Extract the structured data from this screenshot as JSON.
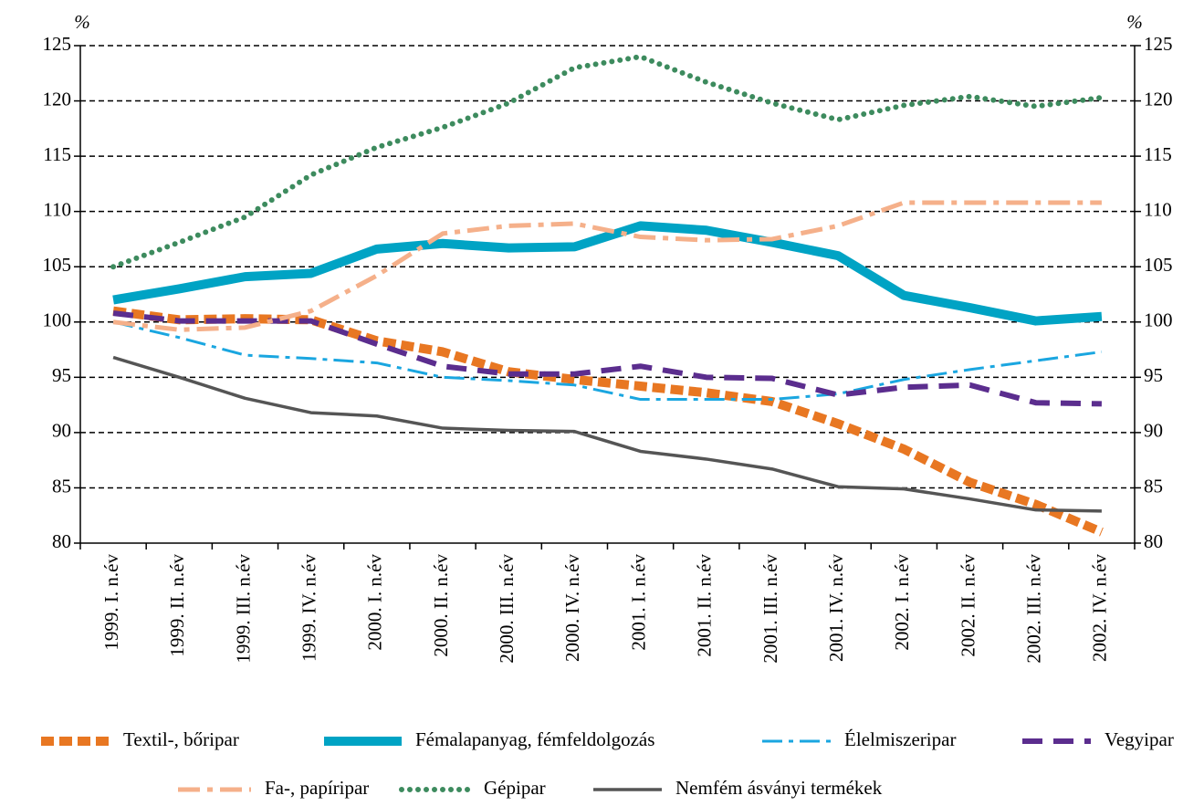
{
  "chart_data": {
    "type": "line",
    "y_label": "%",
    "y2_label": "%",
    "categories": [
      "1999. I. n.év",
      "1999. II. n.év",
      "1999. III. n.év",
      "1999. IV. n.év",
      "2000. I. n.év",
      "2000. II. n.év",
      "2000. III. n.év",
      "2000. IV. n.év",
      "2001. I. n.év",
      "2001. II. n.év",
      "2001. III. n.év",
      "2001. IV. n.év",
      "2002. I. n.év",
      "2002. II. n.év",
      "2002. III. n.év",
      "2002. IV. n.év"
    ],
    "series": [
      {
        "name": "Textil-, bőripar",
        "color": "#e87722",
        "values": [
          101,
          100.2,
          100.3,
          100.2,
          98.3,
          97.3,
          95.5,
          94.8,
          94.2,
          93.6,
          92.8,
          90.8,
          88.5,
          85.5,
          83.5,
          81
        ]
      },
      {
        "name": "Fémalapanyag, fémfeldolgozás",
        "color": "#00a3c4",
        "values": [
          102,
          103,
          104.1,
          104.4,
          106.6,
          107.1,
          106.7,
          106.8,
          108.7,
          108.3,
          107.2,
          106,
          102.4,
          101.3,
          100.1,
          100.5
        ]
      },
      {
        "name": "Élelmiszeripar",
        "color": "#1aa6e0",
        "values": [
          100,
          98.6,
          97,
          96.7,
          96.3,
          95,
          94.7,
          94.3,
          93,
          93,
          93,
          93.5,
          94.8,
          95.7,
          96.5,
          97.3
        ]
      },
      {
        "name": "Vegyipar",
        "color": "#5b2d8e",
        "values": [
          100.8,
          100.1,
          100.1,
          100.1,
          98,
          96,
          95.3,
          95.3,
          96,
          95,
          94.9,
          93.4,
          94.1,
          94.3,
          92.7,
          92.6
        ]
      },
      {
        "name": "Fa-, papíripar",
        "color": "#f5b08a",
        "values": [
          100,
          99.3,
          99.5,
          101,
          104.2,
          108,
          108.7,
          108.9,
          107.7,
          107.4,
          107.5,
          108.7,
          110.8,
          110.8,
          110.8,
          110.8
        ]
      },
      {
        "name": "Gépipar",
        "color": "#3d8b5e",
        "values": [
          105,
          107.2,
          109.5,
          113.3,
          115.8,
          117.6,
          119.8,
          123,
          124,
          121.7,
          119.8,
          118.3,
          119.6,
          120.4,
          119.5,
          120.3
        ]
      },
      {
        "name": "Nemfém ásványi termékek",
        "color": "#555555",
        "values": [
          96.8,
          95,
          93.1,
          91.8,
          91.5,
          90.4,
          90.2,
          90.1,
          88.3,
          87.6,
          86.7,
          85.1,
          84.9,
          84,
          83,
          82.9
        ]
      }
    ],
    "ylim": [
      80,
      125
    ],
    "yticks": [
      80,
      85,
      90,
      95,
      100,
      105,
      110,
      115,
      120,
      125
    ],
    "y2lim": [
      80,
      125
    ],
    "y2ticks": [
      80,
      85,
      90,
      95,
      100,
      105,
      110,
      115,
      120,
      125
    ],
    "grid": true
  }
}
